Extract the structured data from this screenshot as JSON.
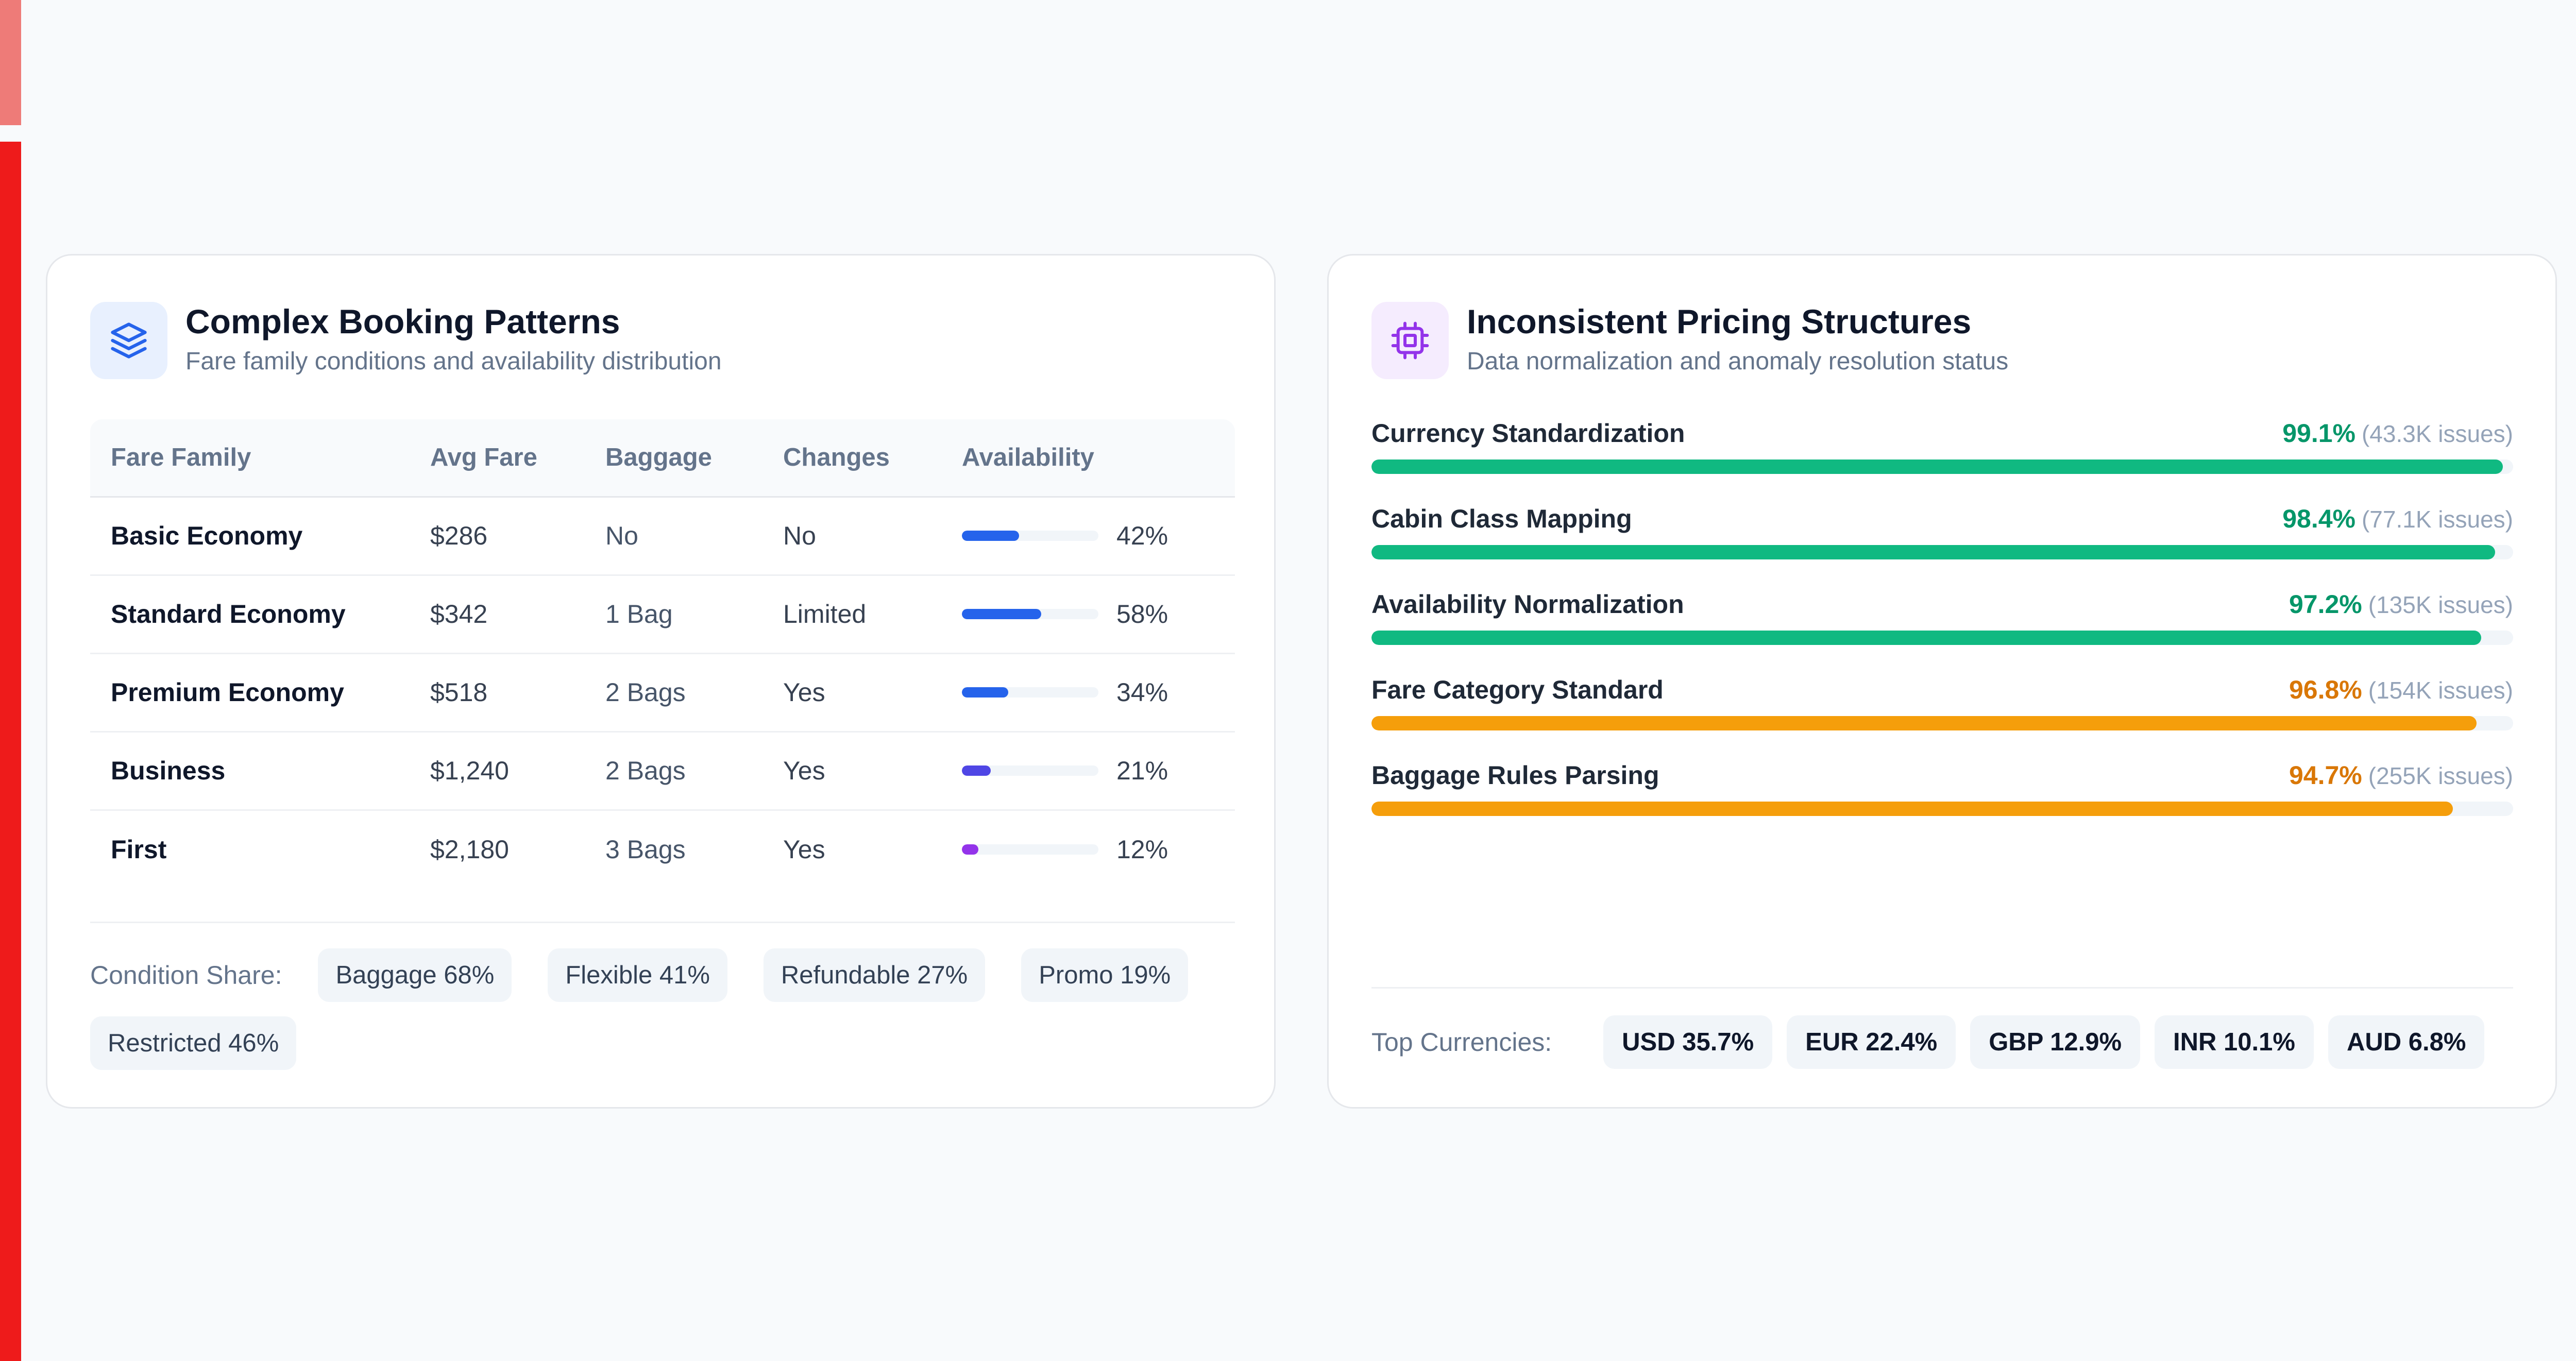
{
  "booking": {
    "title": "Complex Booking Patterns",
    "subtitle": "Fare family conditions and availability distribution",
    "icon": "layers-icon",
    "columns": [
      "Fare Family",
      "Avg Fare",
      "Baggage",
      "Changes",
      "Availability"
    ],
    "rows": [
      {
        "family": "Basic Economy",
        "fare": "$286",
        "baggage": "No",
        "changes": "No",
        "changes_status": "no",
        "availability": 42,
        "availability_label": "42%",
        "bar_color": "#2563eb"
      },
      {
        "family": "Standard Economy",
        "fare": "$342",
        "baggage": "1 Bag",
        "changes": "Limited",
        "changes_status": "limited",
        "availability": 58,
        "availability_label": "58%",
        "bar_color": "#2563eb"
      },
      {
        "family": "Premium Economy",
        "fare": "$518",
        "baggage": "2 Bags",
        "changes": "Yes",
        "changes_status": "yes",
        "availability": 34,
        "availability_label": "34%",
        "bar_color": "#2563eb"
      },
      {
        "family": "Business",
        "fare": "$1,240",
        "baggage": "2 Bags",
        "changes": "Yes",
        "changes_status": "yes",
        "availability": 21,
        "availability_label": "21%",
        "bar_color": "#4f46e5"
      },
      {
        "family": "First",
        "fare": "$2,180",
        "baggage": "3 Bags",
        "changes": "Yes",
        "changes_status": "yes",
        "availability": 12,
        "availability_label": "12%",
        "bar_color": "#9333ea"
      }
    ],
    "condition_label": "Condition Share:",
    "conditions": [
      "Baggage 68%",
      "Flexible 41%",
      "Refundable 27%",
      "Promo 19%",
      "Restricted 46%"
    ]
  },
  "pricing": {
    "title": "Inconsistent Pricing Structures",
    "subtitle": "Data normalization and anomaly resolution status",
    "icon": "cpu-chip-icon",
    "metrics": [
      {
        "label": "Currency Standardization",
        "pct": 99.1,
        "pct_label": "99.1%",
        "issues": "(43.3K issues)",
        "color": "#10b981",
        "text_color": "#059669"
      },
      {
        "label": "Cabin Class Mapping",
        "pct": 98.4,
        "pct_label": "98.4%",
        "issues": "(77.1K issues)",
        "color": "#10b981",
        "text_color": "#059669"
      },
      {
        "label": "Availability Normalization",
        "pct": 97.2,
        "pct_label": "97.2%",
        "issues": "(135K issues)",
        "color": "#10b981",
        "text_color": "#059669"
      },
      {
        "label": "Fare Category Standard",
        "pct": 96.8,
        "pct_label": "96.8%",
        "issues": "(154K issues)",
        "color": "#f59e0b",
        "text_color": "#d97706"
      },
      {
        "label": "Baggage Rules Parsing",
        "pct": 94.7,
        "pct_label": "94.7%",
        "issues": "(255K issues)",
        "color": "#f59e0b",
        "text_color": "#d97706"
      }
    ],
    "currency_label": "Top Currencies:",
    "currencies": [
      "USD 35.7%",
      "EUR 22.4%",
      "GBP 12.9%",
      "INR 10.1%",
      "AUD 6.8%"
    ]
  },
  "colors": {
    "accent_top": "#ee7b78",
    "accent_main": "#ee1b1b"
  }
}
